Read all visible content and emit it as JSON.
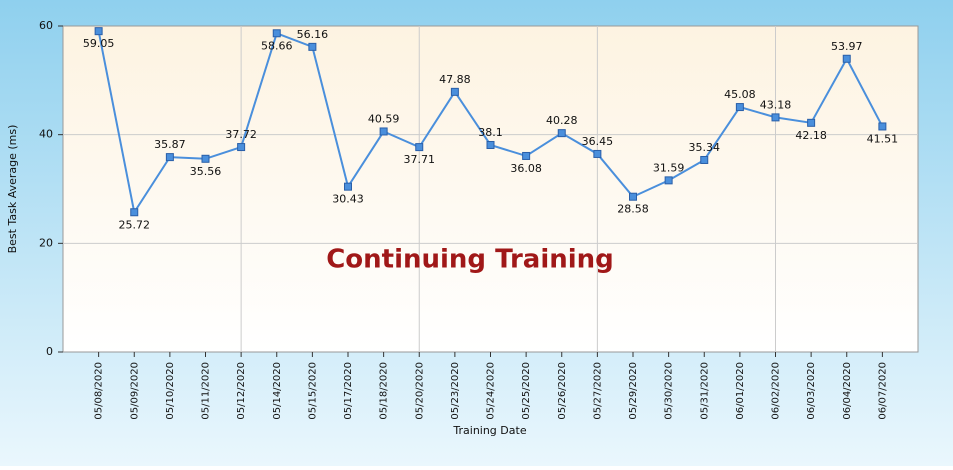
{
  "chart_data": {
    "type": "line",
    "title": "Continuing Training",
    "x_label": "Training Date",
    "y_label": "Best Task Average (ms)",
    "categories": [
      "05/08/2020",
      "05/09/2020",
      "05/10/2020",
      "05/11/2020",
      "05/12/2020",
      "05/14/2020",
      "05/15/2020",
      "05/17/2020",
      "05/18/2020",
      "05/20/2020",
      "05/23/2020",
      "05/24/2020",
      "05/25/2020",
      "05/26/2020",
      "05/27/2020",
      "05/29/2020",
      "05/30/2020",
      "05/31/2020",
      "06/01/2020",
      "06/02/2020",
      "06/03/2020",
      "06/04/2020",
      "06/07/2020"
    ],
    "values": [
      59.05,
      25.72,
      35.87,
      35.56,
      37.72,
      58.66,
      56.16,
      30.43,
      40.59,
      37.71,
      47.88,
      38.1,
      36.08,
      40.28,
      36.45,
      28.58,
      31.59,
      35.34,
      45.08,
      43.18,
      42.18,
      53.97,
      41.51
    ],
    "color": "#4a8fdc",
    "ylim": [
      0,
      60
    ],
    "yticks": [
      0,
      20,
      40,
      60
    ],
    "grid": true
  }
}
